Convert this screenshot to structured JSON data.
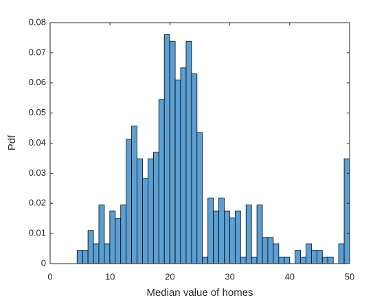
{
  "chart_data": {
    "type": "histogram",
    "x_label": "Median value of homes",
    "y_label": "Pdf",
    "bins": [
      4.5,
      5.41,
      6.32,
      7.23,
      8.14,
      9.05,
      9.96,
      10.87,
      11.78,
      12.69,
      13.6,
      14.51,
      15.42,
      16.33,
      17.24,
      18.15,
      19.06,
      19.97,
      20.88,
      21.79,
      22.7,
      23.61,
      24.52,
      25.43,
      26.34,
      27.25,
      28.16,
      29.07,
      29.98,
      30.89,
      31.8,
      32.71,
      33.62,
      34.53,
      35.44,
      36.35,
      37.26,
      38.17,
      39.08,
      39.99,
      40.9,
      41.81,
      42.72,
      43.63,
      44.54,
      45.45,
      46.36,
      47.27,
      48.18,
      49.09,
      50.0
    ],
    "values": [
      0.0044,
      0.0044,
      0.011,
      0.0066,
      0.0195,
      0.0066,
      0.0175,
      0.015,
      0.0195,
      0.0413,
      0.0457,
      0.0348,
      0.0283,
      0.0348,
      0.037,
      0.0545,
      0.076,
      0.0738,
      0.061,
      0.065,
      0.0738,
      0.063,
      0.0435,
      0.0022,
      0.0218,
      0.0175,
      0.0218,
      0.0175,
      0.0152,
      0.0175,
      0.0022,
      0.0195,
      0.0022,
      0.0195,
      0.0087,
      0.0087,
      0.0066,
      0.0022,
      0.0022,
      0,
      0.0044,
      0.0022,
      0.0066,
      0.0044,
      0.0044,
      0.0022,
      0.0022,
      0,
      0.0066,
      0.0348
    ],
    "color": "#5b9fd3",
    "xlim": [
      0,
      50
    ],
    "xticks": [
      0,
      10,
      20,
      30,
      40,
      50
    ],
    "ylim": [
      0,
      0.08
    ],
    "yticks": [
      0,
      0.01,
      0.02,
      0.03,
      0.04,
      0.05,
      0.06,
      0.07,
      0.08
    ],
    "grid": false
  }
}
